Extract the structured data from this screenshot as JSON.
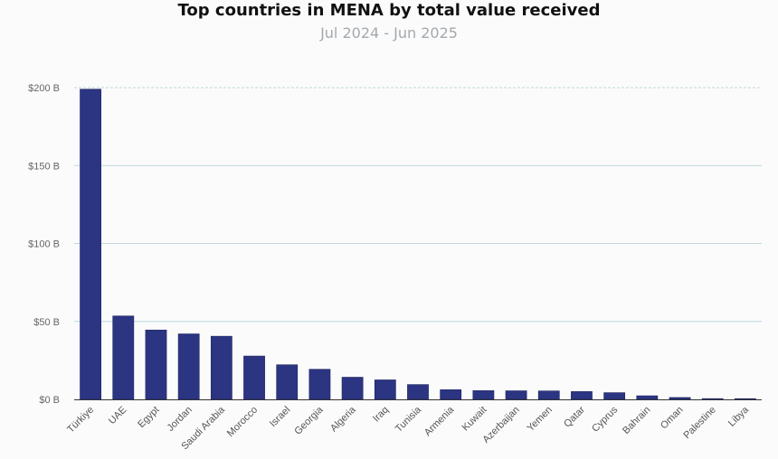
{
  "chart_data": {
    "type": "bar",
    "title": "Top countries in MENA by total value received",
    "subtitle": "Jul 2024 - Jun 2025",
    "xlabel": "",
    "ylabel": "",
    "categories": [
      "Türkiye",
      "UAE",
      "Egypt",
      "Jordan",
      "Saudi Arabia",
      "Morocco",
      "Israel",
      "Georgia",
      "Algeria",
      "Iraq",
      "Tunisia",
      "Armenia",
      "Kuwait",
      "Azerbaijan",
      "Yemen",
      "Qatar",
      "Cyprus",
      "Bahrain",
      "Oman",
      "Palestine",
      "Libya"
    ],
    "values": [
      199,
      53.5,
      44.5,
      42,
      40.5,
      27.8,
      22.2,
      19.3,
      14.2,
      12.5,
      9.5,
      6.2,
      5.6,
      5.5,
      5.4,
      5.0,
      4.3,
      2.3,
      1.2,
      0.5,
      0.1
    ],
    "ylim": [
      0,
      200
    ],
    "yticks": [
      "$0 B",
      "$50 B",
      "$100 B",
      "$150 B",
      "$200 B"
    ],
    "ytick_values": [
      0,
      50,
      100,
      150,
      200
    ],
    "grid": true,
    "colors": {
      "bar": "#2b3582",
      "bar_stroke": "#1f2560",
      "grid": "#bfd6dc",
      "axis": "#333333"
    }
  }
}
